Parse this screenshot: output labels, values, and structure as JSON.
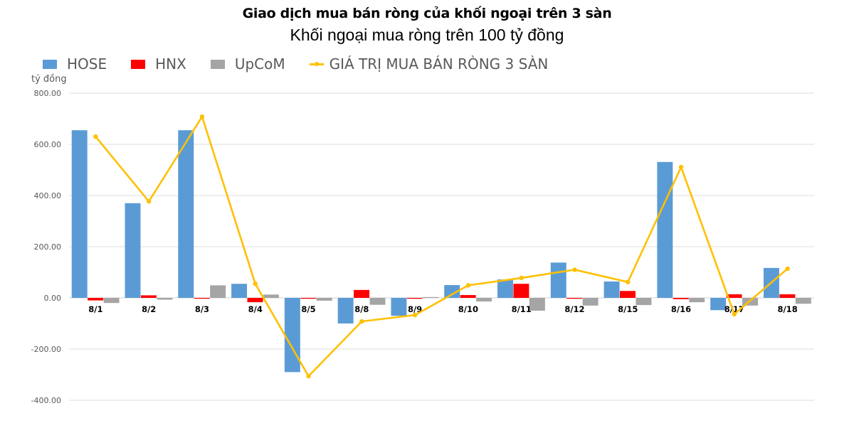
{
  "header": {
    "title": "Giao dịch mua bán ròng của khối ngoại trên 3 sàn",
    "subtitle": "Khối ngoại mua ròng trên 100 tỷ đồng"
  },
  "legend": [
    {
      "label": "HOSE",
      "color": "#5B9BD5",
      "type": "bar"
    },
    {
      "label": "HNX",
      "color": "#FF0000",
      "type": "bar"
    },
    {
      "label": "UpCoM",
      "color": "#A5A5A5",
      "type": "bar"
    },
    {
      "label": "GIÁ TRỊ MUA BÁN RÒNG 3 SÀN",
      "color": "#FFC000",
      "type": "line"
    }
  ],
  "axis": {
    "y_unit": "tỷ đồng",
    "y_ticks": [
      "800.00",
      "600.00",
      "400.00",
      "200.00",
      "0.00",
      "-200.00",
      "-400.00"
    ]
  },
  "chart_data": {
    "type": "bar",
    "title": "Giao dịch mua bán ròng của khối ngoại trên 3 sàn",
    "subtitle": "Khối ngoại mua ròng trên 100 tỷ đồng",
    "xlabel": "",
    "ylabel": "tỷ đồng",
    "ylim": [
      -400,
      800
    ],
    "y_tick_step": 200,
    "grid": true,
    "legend_position": "top-left",
    "categories": [
      "8/1",
      "8/2",
      "8/3",
      "8/4",
      "8/5",
      "8/8",
      "8/9",
      "8/10",
      "8/11",
      "8/12",
      "8/15",
      "8/16",
      "8/17",
      "8/18"
    ],
    "series": [
      {
        "name": "HOSE",
        "type": "bar",
        "color": "#5B9BD5",
        "values": [
          655,
          370,
          655,
          55,
          -290,
          -100,
          -70,
          50,
          72,
          138,
          64,
          531,
          -48,
          117
        ]
      },
      {
        "name": "HNX",
        "type": "bar",
        "color": "#FF0000",
        "values": [
          -10,
          10,
          -2,
          -17,
          -2,
          31,
          -1,
          11,
          55,
          -2,
          27,
          -5,
          14,
          14
        ]
      },
      {
        "name": "UpCoM",
        "type": "bar",
        "color": "#A5A5A5",
        "values": [
          -20,
          -7,
          49,
          13,
          -11,
          -27,
          1,
          -14,
          -50,
          -30,
          -28,
          -17,
          -30,
          -23
        ]
      },
      {
        "name": "GIÁ TRỊ MUA BÁN RÒNG 3 SÀN",
        "type": "line",
        "color": "#FFC000",
        "values": [
          630,
          377,
          708,
          55,
          -306,
          -92,
          -67,
          49,
          78,
          110,
          62,
          511,
          -64,
          114
        ]
      }
    ]
  }
}
